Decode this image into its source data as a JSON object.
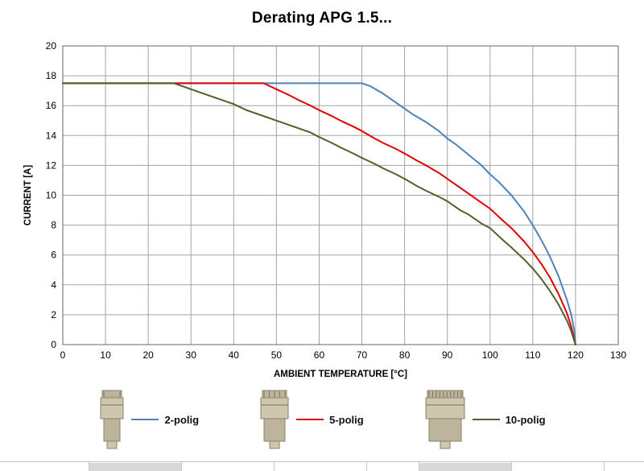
{
  "page": {
    "title": "Derating APG 1.5..."
  },
  "chart_data": {
    "type": "line",
    "title": "Derating APG 1.5...",
    "xlabel": "AMBIENT TEMPERATURE [°C]",
    "ylabel": "CURRENT [A]",
    "xlim": [
      0,
      130
    ],
    "ylim": [
      0,
      20
    ],
    "x_ticks": [
      0,
      10,
      20,
      30,
      40,
      50,
      60,
      70,
      80,
      90,
      100,
      110,
      120,
      130
    ],
    "y_ticks": [
      0,
      2,
      4,
      6,
      8,
      10,
      12,
      14,
      16,
      18,
      20
    ],
    "grid": true,
    "legend_position": "bottom",
    "series": [
      {
        "name": "2-polig",
        "color": "#4f81bd",
        "points": [
          [
            0,
            17.5
          ],
          [
            10,
            17.5
          ],
          [
            20,
            17.5
          ],
          [
            30,
            17.5
          ],
          [
            40,
            17.5
          ],
          [
            50,
            17.5
          ],
          [
            60,
            17.5
          ],
          [
            70,
            17.5
          ],
          [
            72,
            17.3
          ],
          [
            75,
            16.8
          ],
          [
            78,
            16.2
          ],
          [
            80,
            15.8
          ],
          [
            82,
            15.4
          ],
          [
            85,
            14.9
          ],
          [
            88,
            14.3
          ],
          [
            90,
            13.8
          ],
          [
            92,
            13.4
          ],
          [
            95,
            12.7
          ],
          [
            98,
            12.0
          ],
          [
            100,
            11.4
          ],
          [
            102,
            10.9
          ],
          [
            105,
            10.0
          ],
          [
            108,
            8.9
          ],
          [
            110,
            8.0
          ],
          [
            112,
            7.0
          ],
          [
            114,
            5.9
          ],
          [
            116,
            4.6
          ],
          [
            118,
            3.0
          ],
          [
            119,
            2.0
          ],
          [
            119.7,
            1.0
          ],
          [
            120,
            0
          ]
        ]
      },
      {
        "name": "5-polig",
        "color": "#e00000",
        "points": [
          [
            0,
            17.5
          ],
          [
            10,
            17.5
          ],
          [
            20,
            17.5
          ],
          [
            30,
            17.5
          ],
          [
            40,
            17.5
          ],
          [
            47,
            17.5
          ],
          [
            50,
            17.1
          ],
          [
            53,
            16.7
          ],
          [
            55,
            16.4
          ],
          [
            58,
            16.0
          ],
          [
            60,
            15.7
          ],
          [
            63,
            15.3
          ],
          [
            65,
            15.0
          ],
          [
            68,
            14.6
          ],
          [
            70,
            14.3
          ],
          [
            73,
            13.8
          ],
          [
            75,
            13.5
          ],
          [
            78,
            13.1
          ],
          [
            80,
            12.8
          ],
          [
            83,
            12.3
          ],
          [
            85,
            12.0
          ],
          [
            88,
            11.5
          ],
          [
            90,
            11.1
          ],
          [
            93,
            10.5
          ],
          [
            95,
            10.1
          ],
          [
            98,
            9.5
          ],
          [
            100,
            9.1
          ],
          [
            103,
            8.3
          ],
          [
            105,
            7.8
          ],
          [
            108,
            6.9
          ],
          [
            110,
            6.2
          ],
          [
            112,
            5.4
          ],
          [
            114,
            4.5
          ],
          [
            116,
            3.4
          ],
          [
            118,
            2.1
          ],
          [
            119,
            1.2
          ],
          [
            120,
            0
          ]
        ]
      },
      {
        "name": "10-polig",
        "color": "#4f6228",
        "points": [
          [
            0,
            17.5
          ],
          [
            10,
            17.5
          ],
          [
            20,
            17.5
          ],
          [
            26,
            17.5
          ],
          [
            28,
            17.3
          ],
          [
            30,
            17.1
          ],
          [
            33,
            16.8
          ],
          [
            35,
            16.6
          ],
          [
            38,
            16.3
          ],
          [
            40,
            16.1
          ],
          [
            43,
            15.7
          ],
          [
            45,
            15.5
          ],
          [
            48,
            15.2
          ],
          [
            50,
            15.0
          ],
          [
            53,
            14.7
          ],
          [
            55,
            14.5
          ],
          [
            58,
            14.2
          ],
          [
            60,
            13.9
          ],
          [
            63,
            13.5
          ],
          [
            65,
            13.2
          ],
          [
            68,
            12.8
          ],
          [
            70,
            12.5
          ],
          [
            73,
            12.1
          ],
          [
            75,
            11.8
          ],
          [
            78,
            11.4
          ],
          [
            80,
            11.1
          ],
          [
            83,
            10.6
          ],
          [
            85,
            10.3
          ],
          [
            88,
            9.9
          ],
          [
            90,
            9.6
          ],
          [
            93,
            9.0
          ],
          [
            95,
            8.7
          ],
          [
            98,
            8.1
          ],
          [
            100,
            7.8
          ],
          [
            103,
            7.0
          ],
          [
            105,
            6.5
          ],
          [
            108,
            5.7
          ],
          [
            110,
            5.1
          ],
          [
            112,
            4.4
          ],
          [
            114,
            3.6
          ],
          [
            116,
            2.7
          ],
          [
            118,
            1.6
          ],
          [
            119,
            0.9
          ],
          [
            120,
            0
          ]
        ]
      }
    ]
  },
  "legend": {
    "items": [
      {
        "label": "2-polig",
        "poles": 2,
        "color": "#4f81bd",
        "icon": "connector-2polig-image"
      },
      {
        "label": "5-polig",
        "poles": 5,
        "color": "#e00000",
        "icon": "connector-5polig-image"
      },
      {
        "label": "10-polig",
        "poles": 10,
        "color": "#4f6228",
        "icon": "connector-10polig-image"
      }
    ]
  },
  "style": {
    "grid_color": "#a3a3a3",
    "axis_color": "#7f7f7f",
    "text_color": "#000000",
    "connector_body": "#cfc6af",
    "connector_shade": "#bdb49c",
    "connector_edge": "#8a806a",
    "connector_slot": "#7c735e"
  }
}
